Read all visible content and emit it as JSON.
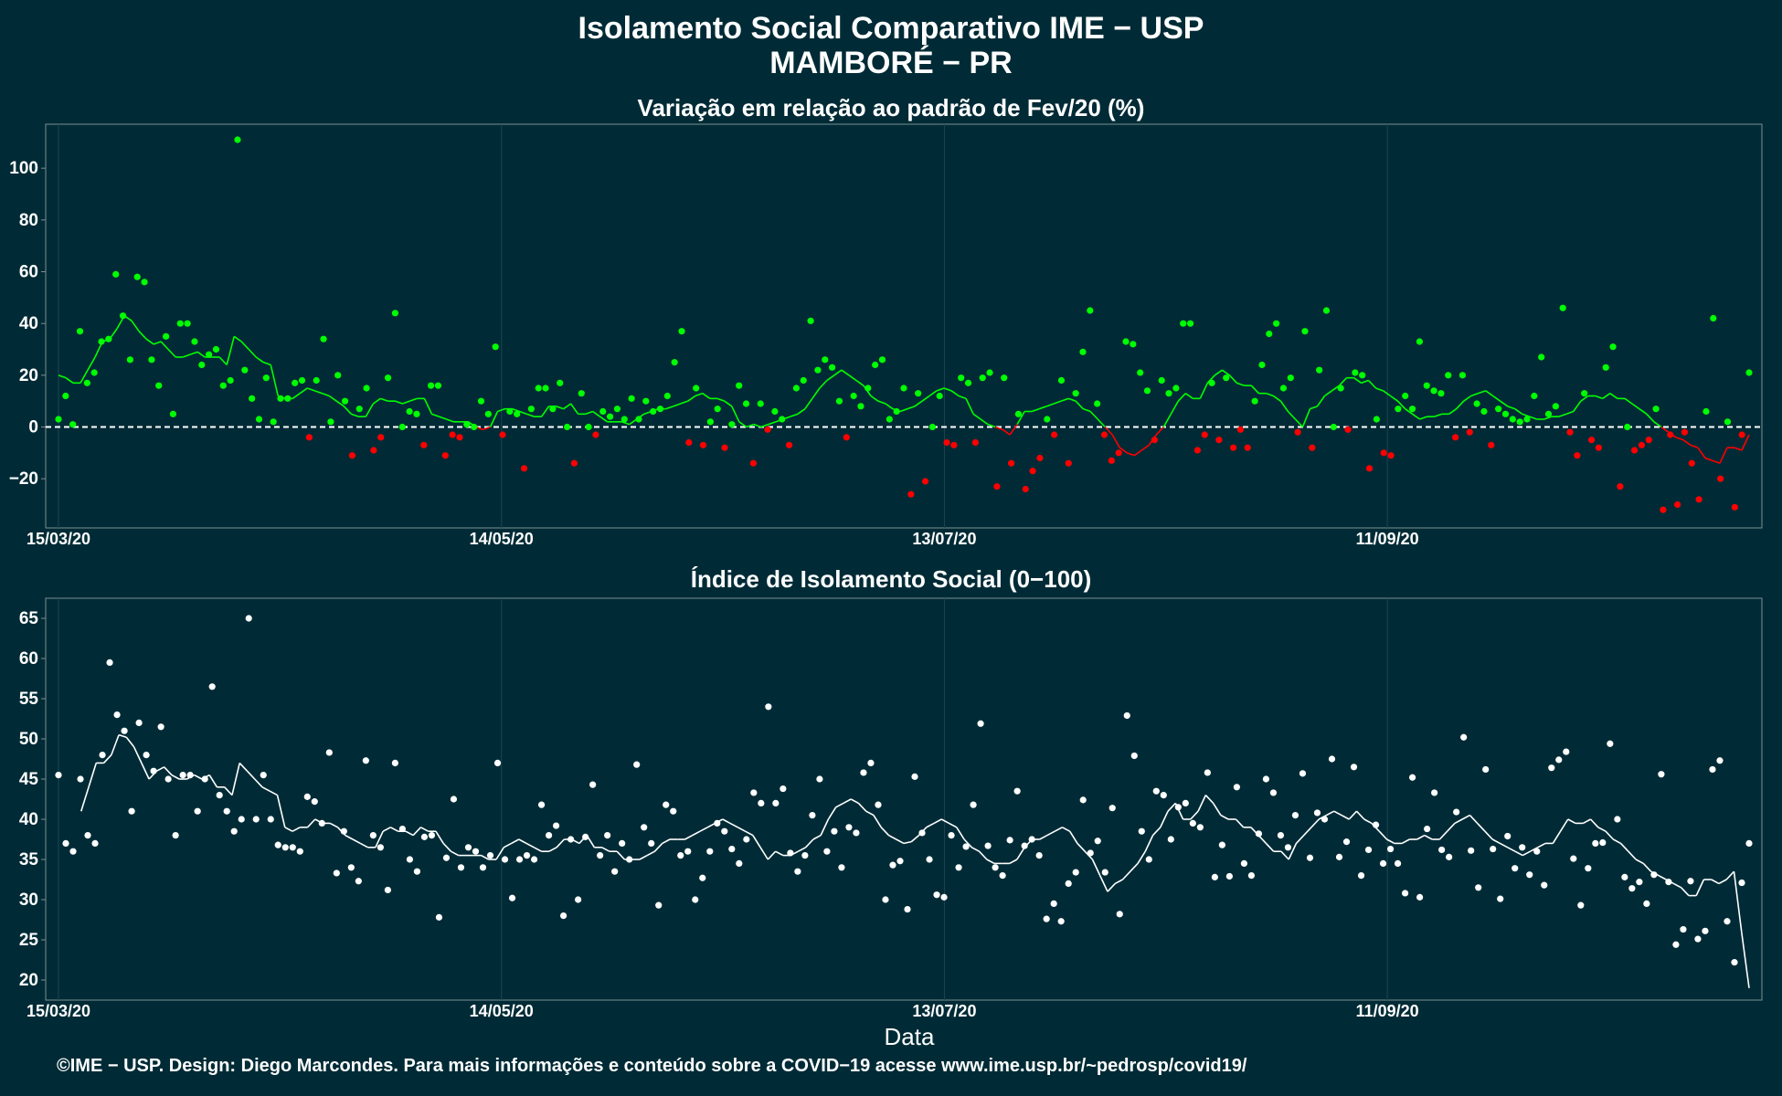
{
  "title": "Isolamento Social Comparativo IME − USP",
  "subtitle": "MAMBORÉ − PR",
  "xlabel": "Data",
  "caption": "©IME − USP. Design: Diego Marcondes. Para mais informações e conteúdo sobre a COVID−19 acesse www.ime.usp.br/~pedrosp/covid19/",
  "colors": {
    "background": "#002b36",
    "positive": "#00ff00",
    "negative": "#ff0000",
    "index": "#ffffff",
    "grid": "#1b4552"
  },
  "chart_data": [
    {
      "type": "scatter",
      "title": "Variação em relação ao padrão de Fev/20 (%)",
      "x_start": "15/03/20",
      "x_end": "30/10/20",
      "x_ticks": [
        "15/03/20",
        "14/05/20",
        "13/07/20",
        "11/09/20"
      ],
      "y_ticks": [
        100,
        80,
        60,
        40,
        20,
        0,
        -20
      ],
      "ylim": [
        -39,
        117
      ],
      "reference_line": 0,
      "grid": true,
      "series": [
        {
          "style": "points",
          "colored_by_sign": true,
          "values": [
            3,
            12,
            1,
            37,
            17,
            21,
            33,
            34,
            59,
            43,
            26,
            58,
            56,
            26,
            16,
            35,
            5,
            40,
            40,
            33,
            24,
            28,
            30,
            16,
            18,
            111,
            22,
            11,
            3,
            19,
            2,
            11,
            11,
            17,
            18,
            -4,
            18,
            34,
            2,
            20,
            10,
            -11,
            7,
            15,
            -9,
            -4,
            19,
            44,
            0,
            6,
            5,
            -7,
            16,
            16,
            -11,
            -3,
            -4,
            1,
            0,
            10,
            5,
            31,
            -3,
            6,
            5,
            -16,
            7,
            15,
            15,
            7,
            17,
            0,
            -14,
            13,
            0,
            -3,
            6,
            4,
            7,
            3,
            11,
            3,
            10,
            6,
            7,
            12,
            25,
            37,
            -6,
            15,
            -7,
            2,
            7,
            -8,
            1,
            16,
            9,
            -14,
            9,
            -1,
            6,
            3,
            -7,
            15,
            18,
            41,
            22,
            26,
            23,
            10,
            -4,
            12,
            8,
            15,
            24,
            26,
            3,
            6,
            15,
            -26,
            13,
            -21,
            0,
            12,
            -6,
            -7,
            19,
            17,
            -6,
            19,
            21,
            -23,
            19,
            -14,
            5,
            -24,
            -17,
            -12,
            3,
            -3,
            18,
            -14,
            13,
            29,
            45,
            9,
            -3,
            -13,
            -10,
            33,
            32,
            21,
            14,
            -5,
            18,
            13,
            15,
            40,
            40,
            -9,
            -3,
            17,
            -5,
            19,
            -8,
            -1,
            -8,
            10,
            24,
            36,
            40,
            15,
            19,
            -2,
            37,
            -8,
            22,
            45,
            0,
            15,
            -1,
            21,
            20,
            -16,
            3,
            -10,
            -11,
            7,
            12,
            7,
            33,
            16,
            14,
            13,
            20,
            -4,
            20,
            -2,
            9,
            6,
            -7,
            7,
            5,
            3,
            2,
            3,
            12,
            27,
            5,
            8,
            46,
            -2,
            -11,
            13,
            -5,
            -8,
            23,
            31,
            -23,
            0,
            -9,
            -7,
            -5,
            7,
            -32,
            -3,
            -30,
            -2,
            -14,
            -28,
            6,
            42,
            -20,
            2,
            -31,
            -3,
            21
          ]
        },
        {
          "style": "line",
          "name_hidden": true,
          "values": [
            20,
            19,
            17,
            17,
            22,
            27,
            33,
            34,
            38,
            43,
            41,
            37,
            34,
            32,
            33,
            30,
            27,
            27,
            28,
            29,
            27,
            27,
            27,
            24,
            35,
            33,
            30,
            27,
            25,
            24,
            12,
            11,
            11,
            13,
            15,
            14,
            13,
            12,
            10,
            8,
            5,
            4,
            4,
            9,
            11,
            10,
            10,
            9,
            10,
            11,
            11,
            5,
            4,
            3,
            2,
            2,
            2,
            0,
            -1,
            0,
            6,
            7,
            7,
            6,
            5,
            4,
            4,
            8,
            8,
            7,
            9,
            5,
            5,
            6,
            4,
            2,
            2,
            2,
            1,
            3,
            5,
            6,
            7,
            7,
            8,
            9,
            10,
            12,
            13,
            11,
            11,
            10,
            8,
            2,
            0,
            1,
            0,
            1,
            2,
            3,
            4,
            5,
            7,
            11,
            15,
            18,
            20,
            22,
            20,
            18,
            16,
            12,
            10,
            9,
            7,
            6,
            7,
            8,
            10,
            12,
            14,
            15,
            14,
            12,
            11,
            5,
            3,
            1,
            0,
            -1,
            -3,
            1,
            6,
            6,
            7,
            8,
            9,
            10,
            11,
            10,
            7,
            6,
            3,
            0,
            -3,
            -8,
            -10,
            -11,
            -9,
            -7,
            -3,
            0,
            5,
            10,
            13,
            11,
            11,
            17,
            20,
            22,
            20,
            17,
            16,
            16,
            13,
            13,
            12,
            10,
            6,
            3,
            0,
            7,
            8,
            12,
            14,
            16,
            19,
            19,
            17,
            18,
            15,
            14,
            12,
            10,
            7,
            5,
            3,
            4,
            4,
            5,
            5,
            7,
            10,
            12,
            13,
            14,
            12,
            10,
            8,
            7,
            5,
            4,
            3,
            3,
            4,
            4,
            5,
            6,
            10,
            12,
            12,
            11,
            13,
            11,
            11,
            9,
            7,
            5,
            2,
            0,
            -2,
            -4,
            -5,
            -7,
            -8,
            -12,
            -13,
            -14,
            -8,
            -8,
            -9,
            -3
          ]
        }
      ]
    },
    {
      "type": "scatter",
      "title": "Índice de Isolamento Social (0−100)",
      "x_start": "15/03/20",
      "x_end": "30/10/20",
      "x_ticks": [
        "15/03/20",
        "14/05/20",
        "13/07/20",
        "11/09/20"
      ],
      "y_ticks": [
        65,
        60,
        55,
        50,
        45,
        40,
        35,
        30,
        25,
        20
      ],
      "ylim": [
        17.5,
        67.5
      ],
      "grid": true,
      "series": [
        {
          "style": "points",
          "values": [
            45.5,
            37,
            36,
            45,
            38,
            37,
            48,
            59.5,
            53,
            51,
            41,
            52,
            48,
            46,
            51.5,
            45,
            38,
            45.5,
            45.5,
            41,
            45,
            56.5,
            43,
            41,
            38.5,
            40,
            65,
            40,
            45.5,
            40,
            36.8,
            36.5,
            36.5,
            36,
            42.8,
            42.2,
            39.5,
            48.3,
            33.3,
            38.5,
            34,
            32.3,
            47.3,
            38,
            36.5,
            31.2,
            47,
            38.8,
            35,
            33.5,
            37.8,
            38,
            27.8,
            35.2,
            42.5,
            34,
            36.5,
            36,
            34,
            35.5,
            47,
            35,
            30.2,
            35,
            35.5,
            35,
            41.8,
            38,
            39.2,
            28,
            37.5,
            30,
            37.8,
            44.3,
            35.5,
            38,
            33.5,
            37,
            35,
            46.8,
            39,
            37,
            29.3,
            41.8,
            41,
            35.5,
            36,
            30,
            32.7,
            36,
            39.5,
            38.5,
            36.3,
            34.5,
            37.5,
            43.3,
            42,
            54,
            42,
            43.8,
            35.8,
            33.5,
            35.5,
            40.5,
            45,
            36,
            38.5,
            34,
            39,
            38.3,
            45.8,
            47,
            41.8,
            30,
            34.3,
            34.8,
            28.8,
            45.3,
            38.3,
            35,
            30.6,
            30.3,
            38,
            34,
            36.6,
            41.8,
            51.9,
            36.7,
            34,
            33,
            37.4,
            43.5,
            36.7,
            37.5,
            35.5,
            27.6,
            29.5,
            27.3,
            32,
            33.4,
            42.4,
            35.8,
            37.3,
            33.4,
            41.4,
            28.2,
            52.9,
            47.9,
            38.5,
            35,
            43.5,
            43,
            37.5,
            41.5,
            42,
            39.5,
            39,
            45.8,
            32.8,
            36.8,
            32.9,
            44,
            34.5,
            33,
            38.2,
            45,
            43.3,
            38,
            36.5,
            40.5,
            45.7,
            35.2,
            40.8,
            40,
            47.5,
            35.3,
            37.2,
            46.5,
            33,
            36.2,
            39.3,
            34.5,
            36.3,
            34.5,
            30.8,
            45.2,
            30.3,
            38.8,
            43.3,
            36.2,
            35.3,
            40.9,
            50.2,
            36.1,
            31.5,
            46.2,
            36.3,
            30.1,
            37.9,
            33.9,
            36.5,
            33.1,
            36,
            31.8,
            46.4,
            47.4,
            48.4,
            35.1,
            29.3,
            33.9,
            37,
            37.1,
            49.4,
            40,
            32.8,
            31.4,
            32.2,
            29.5,
            33.1,
            45.6,
            32.2,
            24.4,
            26.3,
            32.3,
            25.1,
            26.1,
            46.2,
            47.3,
            27.3,
            22.2,
            32.1,
            37
          ]
        },
        {
          "style": "line",
          "values": [
            null,
            null,
            null,
            41,
            44,
            47,
            47,
            48,
            50.5,
            50.2,
            49,
            47,
            45,
            46,
            46.5,
            45.5,
            45,
            45,
            45.5,
            45,
            45.5,
            44,
            44,
            43,
            47,
            46,
            45,
            44,
            43.5,
            43,
            39,
            38.5,
            39,
            39,
            40,
            39.5,
            39.5,
            39,
            38,
            37.5,
            37,
            36.5,
            36.5,
            38.5,
            39,
            38.5,
            38.5,
            38,
            39,
            38.5,
            38.5,
            37,
            36,
            35.5,
            35.5,
            35.5,
            35.5,
            35,
            35,
            36.5,
            37,
            37.5,
            37,
            36.5,
            36,
            36,
            36.5,
            37.5,
            37.5,
            37,
            38,
            36.5,
            36.5,
            36,
            36,
            35,
            35,
            35,
            35.5,
            36,
            37,
            37.5,
            37.5,
            37.5,
            38,
            38.5,
            39,
            39.5,
            40,
            39.5,
            39,
            38.5,
            38,
            36.5,
            35,
            36,
            35.5,
            35.5,
            36,
            36.5,
            37.5,
            38,
            40,
            41.5,
            42,
            42.5,
            42,
            41,
            40.5,
            39,
            38,
            37.5,
            37,
            37.2,
            38,
            39,
            39.5,
            40,
            39.5,
            39,
            37.5,
            36.5,
            36,
            35,
            34.5,
            34.5,
            34.5,
            35,
            36.5,
            37.5,
            37.5,
            38,
            38.5,
            39,
            38.5,
            37,
            36,
            35,
            33,
            31,
            32,
            32.5,
            33.5,
            34.5,
            36,
            38,
            39,
            41,
            42,
            40,
            40,
            41,
            43,
            42,
            40.5,
            40,
            40,
            39,
            39,
            38,
            37,
            36,
            36,
            35,
            37,
            38,
            39,
            40,
            40.5,
            41,
            40.5,
            40,
            41,
            40,
            39.5,
            38.5,
            37.5,
            37,
            37,
            37.5,
            37.5,
            38,
            37.5,
            37.5,
            38.5,
            39.5,
            40,
            40.5,
            39.5,
            38.5,
            37.5,
            37,
            36.5,
            36,
            35.5,
            36,
            36.5,
            37,
            37,
            38.5,
            40,
            39.5,
            39.5,
            40,
            39,
            38.5,
            37.5,
            37,
            36,
            35,
            34.5,
            33.5,
            33,
            32.5,
            32,
            31.5,
            30.5,
            30.5,
            32.5,
            32.5,
            32,
            32.5,
            33.5,
            26,
            19
          ]
        }
      ]
    }
  ]
}
